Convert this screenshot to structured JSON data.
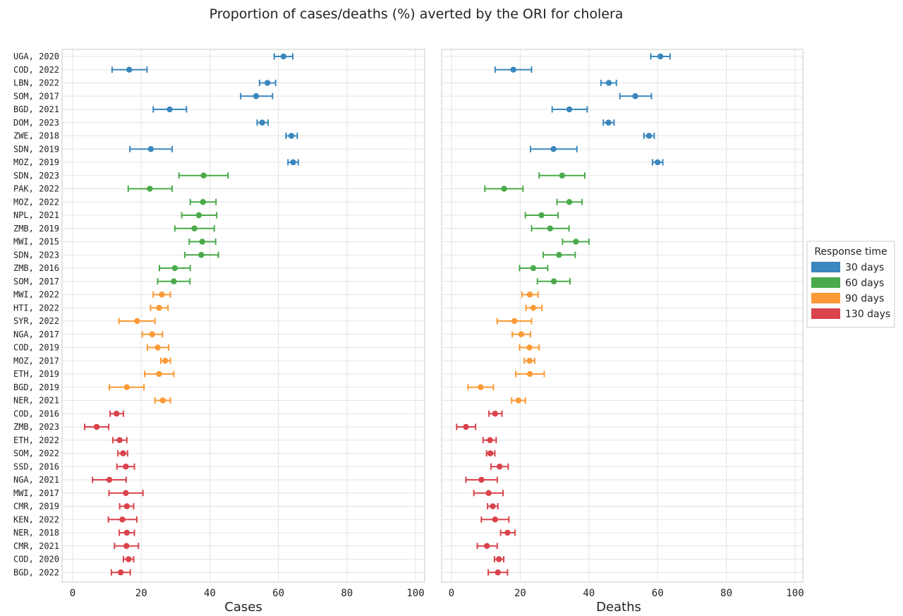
{
  "chart_data": {
    "type": "scatter",
    "title": "Proportion of cases/deaths (%) averted by the ORI for cholera",
    "categories": [
      "UGA, 2020",
      "COD, 2022",
      "LBN, 2022",
      "SOM, 2017",
      "BGD, 2021",
      "DOM, 2023",
      "ZWE, 2018",
      "SDN, 2019",
      "MOZ, 2019",
      "SDN, 2023",
      "PAK, 2022",
      "MOZ, 2022",
      "NPL, 2021",
      "ZMB, 2019",
      "MWI, 2015",
      "SDN, 2023",
      "ZMB, 2016",
      "SOM, 2017",
      "MWI, 2022",
      "HTI, 2022",
      "SYR, 2022",
      "NGA, 2017",
      "COD, 2019",
      "MOZ, 2017",
      "ETH, 2019",
      "BGD, 2019",
      "NER, 2021",
      "COD, 2016",
      "ZMB, 2023",
      "ETH, 2022",
      "SOM, 2022",
      "SSD, 2016",
      "NGA, 2021",
      "MWI, 2017",
      "CMR, 2019",
      "KEN, 2022",
      "NER, 2018",
      "CMR, 2021",
      "COD, 2020",
      "BGD, 2022"
    ],
    "group": [
      0,
      0,
      0,
      0,
      0,
      0,
      0,
      0,
      0,
      1,
      1,
      1,
      1,
      1,
      1,
      1,
      1,
      1,
      2,
      2,
      2,
      2,
      2,
      2,
      2,
      2,
      2,
      3,
      3,
      3,
      3,
      3,
      3,
      3,
      3,
      3,
      3,
      3,
      3,
      3
    ],
    "panels": [
      {
        "xlabel": "Cases",
        "xlim": [
          0,
          100
        ],
        "xticks": [
          "0",
          "20",
          "40",
          "60",
          "80",
          "100"
        ],
        "points": [
          [
            61.5,
            58.8,
            64.2
          ],
          [
            16.5,
            11.5,
            21.7
          ],
          [
            56.8,
            54.5,
            59.2
          ],
          [
            53.5,
            49.0,
            58.3
          ],
          [
            28.3,
            23.5,
            33.2
          ],
          [
            55.3,
            53.8,
            57.0
          ],
          [
            63.8,
            62.2,
            65.5
          ],
          [
            22.8,
            16.7,
            29.0
          ],
          [
            64.3,
            62.8,
            65.8
          ],
          [
            38.2,
            31.0,
            45.3
          ],
          [
            22.5,
            16.2,
            29.0
          ],
          [
            38.0,
            34.3,
            41.8
          ],
          [
            36.8,
            31.8,
            42.0
          ],
          [
            35.5,
            29.8,
            41.3
          ],
          [
            37.8,
            34.0,
            41.7
          ],
          [
            37.5,
            32.7,
            42.5
          ],
          [
            29.8,
            25.3,
            34.3
          ],
          [
            29.5,
            24.8,
            34.2
          ],
          [
            26.0,
            23.5,
            28.5
          ],
          [
            25.2,
            22.7,
            27.8
          ],
          [
            18.8,
            13.5,
            24.0
          ],
          [
            23.2,
            20.3,
            26.2
          ],
          [
            24.8,
            21.8,
            28.0
          ],
          [
            27.0,
            25.7,
            28.5
          ],
          [
            25.2,
            21.0,
            29.5
          ],
          [
            15.8,
            10.7,
            20.8
          ],
          [
            26.3,
            24.0,
            28.5
          ],
          [
            12.8,
            10.9,
            14.8
          ],
          [
            7.0,
            3.5,
            10.5
          ],
          [
            13.7,
            11.7,
            15.8
          ],
          [
            14.7,
            13.2,
            16.0
          ],
          [
            15.5,
            12.9,
            18.0
          ],
          [
            10.7,
            5.8,
            15.6
          ],
          [
            15.5,
            10.6,
            20.5
          ],
          [
            15.8,
            13.7,
            17.8
          ],
          [
            14.5,
            10.4,
            18.7
          ],
          [
            15.8,
            13.6,
            18.0
          ],
          [
            15.7,
            12.2,
            19.2
          ],
          [
            16.3,
            14.8,
            17.8
          ],
          [
            14.0,
            11.3,
            16.8
          ]
        ]
      },
      {
        "xlabel": "Deaths",
        "xlim": [
          0,
          100
        ],
        "xticks": [
          "0",
          "20",
          "40",
          "60",
          "80",
          "100"
        ],
        "points": [
          [
            60.8,
            58.0,
            63.6
          ],
          [
            18.0,
            12.7,
            23.3
          ],
          [
            45.8,
            43.5,
            48.0
          ],
          [
            53.5,
            49.0,
            58.2
          ],
          [
            34.3,
            29.3,
            39.5
          ],
          [
            45.7,
            44.2,
            47.3
          ],
          [
            57.5,
            56.0,
            59.0
          ],
          [
            29.7,
            23.0,
            36.5
          ],
          [
            60.0,
            58.5,
            61.5
          ],
          [
            32.2,
            25.5,
            38.8
          ],
          [
            15.3,
            9.7,
            20.8
          ],
          [
            34.3,
            30.7,
            38.0
          ],
          [
            26.2,
            21.5,
            31.0
          ],
          [
            28.7,
            23.3,
            34.2
          ],
          [
            36.2,
            32.3,
            40.0
          ],
          [
            31.3,
            26.7,
            36.0
          ],
          [
            23.8,
            19.8,
            28.0
          ],
          [
            29.8,
            25.0,
            34.5
          ],
          [
            22.8,
            20.5,
            25.2
          ],
          [
            23.8,
            21.7,
            26.3
          ],
          [
            18.3,
            13.3,
            23.3
          ],
          [
            20.3,
            17.7,
            23.0
          ],
          [
            22.7,
            19.8,
            25.5
          ],
          [
            22.7,
            21.2,
            24.2
          ],
          [
            22.8,
            18.7,
            27.0
          ],
          [
            8.5,
            4.8,
            12.2
          ],
          [
            19.5,
            17.5,
            21.5
          ],
          [
            12.7,
            10.9,
            14.7
          ],
          [
            4.2,
            1.5,
            7.0
          ],
          [
            11.2,
            9.2,
            13.0
          ],
          [
            11.3,
            10.2,
            12.6
          ],
          [
            14.0,
            11.5,
            16.5
          ],
          [
            8.7,
            4.2,
            13.3
          ],
          [
            10.8,
            6.5,
            15.0
          ],
          [
            12.0,
            10.5,
            13.5
          ],
          [
            12.7,
            8.7,
            16.7
          ],
          [
            16.3,
            14.3,
            18.5
          ],
          [
            10.3,
            7.5,
            13.3
          ],
          [
            13.8,
            12.5,
            15.2
          ],
          [
            13.5,
            10.7,
            16.3
          ]
        ]
      }
    ],
    "legend": {
      "title": "Response time",
      "placement": "right",
      "items": [
        {
          "label": "30 days",
          "color": "#3a87bd"
        },
        {
          "label": "60 days",
          "color": "#4aaa4a"
        },
        {
          "label": "90 days",
          "color": "#fb9a36"
        },
        {
          "label": "130 days",
          "color": "#d9434b"
        }
      ]
    },
    "grid": true
  }
}
